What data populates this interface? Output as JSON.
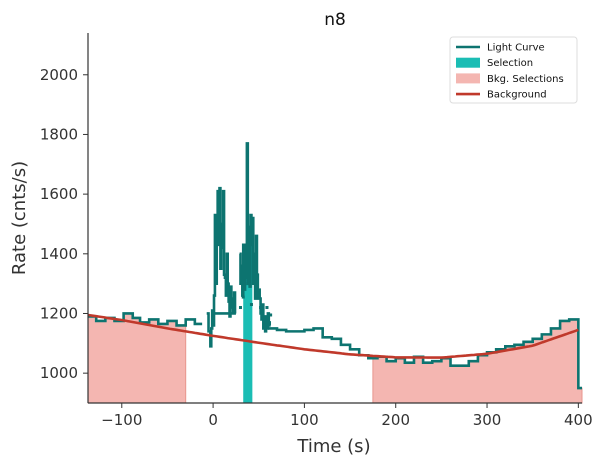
{
  "chart_data": {
    "type": "line",
    "title": "n8",
    "xlabel": "Time (s)",
    "ylabel": "Rate (cnts/s)",
    "xlim": [
      -137,
      404
    ],
    "ylim": [
      900,
      2140
    ],
    "x_ticks": [
      -100,
      0,
      100,
      200,
      300,
      400
    ],
    "x_tick_labels": [
      "−100",
      "0",
      "100",
      "200",
      "300",
      "400"
    ],
    "y_ticks": [
      1000,
      1200,
      1400,
      1600,
      1800,
      2000
    ],
    "y_tick_labels": [
      "1000",
      "1200",
      "1400",
      "1600",
      "1800",
      "2000"
    ],
    "grid": false,
    "legend_position": "top-right",
    "legend": [
      {
        "label": "Light Curve",
        "kind": "line",
        "color": "#0d7470"
      },
      {
        "label": "Selection",
        "kind": "patch",
        "color": "#1bbdb4"
      },
      {
        "label": "Bkg. Selections",
        "kind": "patch",
        "color": "#f4b6b1"
      },
      {
        "label": "Background",
        "kind": "line",
        "color": "#c0392b"
      }
    ],
    "series": [
      {
        "name": "Light Curve",
        "kind": "step",
        "color": "#0d7470",
        "segments": [
          {
            "x": [
              -137,
              -128,
              -118,
              -108,
              -98,
              -88,
              -80,
              -70,
              -60,
              -50,
              -40,
              -30,
              -20
            ],
            "y": [
              1190,
              1175,
              1185,
              1175,
              1200,
              1185,
              1170,
              1180,
              1165,
              1175,
              1160,
              1180,
              1165
            ]
          },
          {
            "x": [
              -7,
              -5,
              -3,
              -2,
              -1,
              0,
              1,
              2,
              3,
              4,
              5,
              6,
              7,
              8,
              9,
              10,
              11,
              12,
              13,
              14,
              15,
              16,
              17,
              18,
              19,
              20,
              21,
              22,
              23,
              24,
              25
            ],
            "y": [
              1200,
              1140,
              1090,
              1150,
              1210,
              1160,
              1260,
              1530,
              1300,
              1450,
              1610,
              1430,
              1620,
              1350,
              1500,
              1420,
              1610,
              1330,
              1320,
              1260,
              1400,
              1300,
              1240,
              1190,
              1290,
              1220,
              1250,
              1200,
              1270,
              1200,
              1200
            ]
          },
          {
            "x": [
              29,
              30,
              31,
              32,
              33,
              34,
              35,
              36,
              37,
              38,
              39,
              40,
              41,
              42,
              43,
              44,
              45,
              46,
              47,
              48,
              49,
              50,
              51,
              52,
              53,
              54,
              55,
              56,
              57,
              58,
              59,
              60,
              61,
              62
            ],
            "y": [
              1400,
              1300,
              1360,
              1260,
              1430,
              1280,
              1320,
              1430,
              1770,
              1300,
              1490,
              1290,
              1530,
              1430,
              1520,
              1300,
              1400,
              1250,
              1460,
              1330,
              1250,
              1280,
              1250,
              1200,
              1180,
              1230,
              1150,
              1190,
              1140,
              1190,
              1150,
              1200,
              1170,
              1160
            ]
          },
          {
            "x": [
              60,
              70,
              80,
              90,
              100,
              110,
              120,
              130,
              140,
              150,
              160,
              170,
              180,
              190,
              200,
              210,
              220,
              230,
              240,
              250,
              260,
              270,
              280,
              290,
              300,
              310,
              320,
              330,
              340,
              350,
              360,
              370,
              380,
              390,
              400
            ],
            "y": [
              1150,
              1145,
              1140,
              1140,
              1145,
              1150,
              1120,
              1115,
              1095,
              1080,
              1060,
              1050,
              1055,
              1040,
              1050,
              1035,
              1055,
              1035,
              1040,
              1050,
              1025,
              1025,
              1040,
              1060,
              1070,
              1080,
              1090,
              1095,
              1105,
              1115,
              1130,
              1150,
              1175,
              1180,
              950
            ]
          }
        ],
        "x_end": [
          -12,
          0,
          63,
          404
        ]
      },
      {
        "name": "Background",
        "kind": "line",
        "color": "#c0392b",
        "x": [
          -137,
          -100,
          -50,
          0,
          50,
          100,
          150,
          200,
          250,
          300,
          350,
          400
        ],
        "y": [
          1195,
          1178,
          1150,
          1125,
          1102,
          1080,
          1063,
          1053,
          1052,
          1065,
          1092,
          1145
        ]
      }
    ],
    "dotted_points": {
      "color": "#0d7470",
      "x": [
        30,
        33,
        38,
        42,
        48,
        52,
        59,
        63
      ],
      "y": [
        1220,
        1255,
        1300,
        1230,
        1270,
        1220,
        1220,
        1195
      ]
    },
    "selections": [
      {
        "x0": 33,
        "x1": 43,
        "color": "#1bbdb4"
      }
    ],
    "bkg_selections": [
      {
        "x0": -137,
        "x1": -30,
        "color": "#f4b6b1"
      },
      {
        "x0": 175,
        "x1": 404,
        "color": "#f4b6b1"
      }
    ]
  }
}
